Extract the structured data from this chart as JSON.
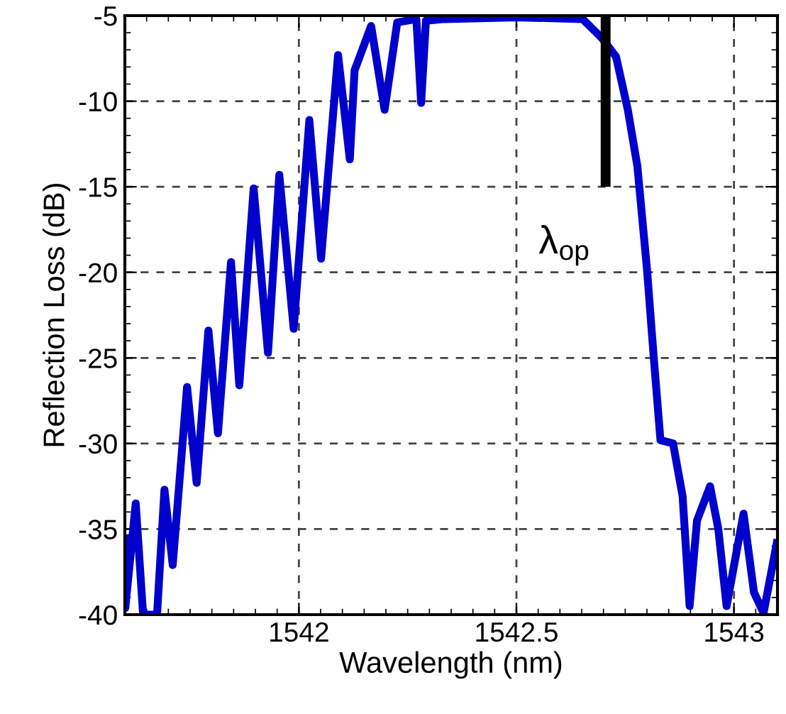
{
  "chart_data": {
    "type": "line",
    "xlabel": "Wavelength (nm)",
    "ylabel": "Reflection Loss (dB)",
    "xlim": [
      1541.6,
      1543.1
    ],
    "ylim": [
      -40,
      -5
    ],
    "xticks": [
      1542,
      1542.5,
      1543
    ],
    "yticks": [
      -40,
      -35,
      -30,
      -25,
      -20,
      -15,
      -10,
      -5
    ],
    "grid": true,
    "line_style": "solid",
    "marker": "none",
    "series": [
      {
        "color": "#0000cc",
        "x": [
          1541.6,
          1541.601,
          1541.625,
          1541.642,
          1541.674,
          1541.691,
          1541.71,
          1541.743,
          1541.765,
          1541.792,
          1541.814,
          1541.844,
          1541.863,
          1541.896,
          1541.929,
          1541.955,
          1541.988,
          1542.024,
          1542.051,
          1542.09,
          1542.117,
          1542.128,
          1542.166,
          1542.197,
          1542.226,
          1542.27,
          1542.281,
          1542.292,
          1542.334,
          1542.5,
          1542.652,
          1542.696,
          1542.729,
          1542.756,
          1542.778,
          1542.8,
          1542.816,
          1542.831,
          1542.86,
          1542.882,
          1542.898,
          1542.915,
          1542.945,
          1542.964,
          1542.983,
          1543.022,
          1543.046,
          1543.068,
          1543.1
        ],
        "values": [
          -35.3,
          -39.6,
          -33.5,
          -40,
          -40,
          -32.7,
          -37.1,
          -26.7,
          -32.3,
          -23.4,
          -29.4,
          -19.4,
          -26.6,
          -15.1,
          -24.7,
          -14.3,
          -23.3,
          -11.1,
          -19.2,
          -7.3,
          -13.4,
          -8.2,
          -5.6,
          -10.5,
          -5.4,
          -5.2,
          -10.1,
          -5.3,
          -5.2,
          -5.1,
          -5.2,
          -6.3,
          -7.4,
          -10.5,
          -13.8,
          -19.8,
          -25.1,
          -29.8,
          -30,
          -33.1,
          -39.5,
          -34.5,
          -32.5,
          -35,
          -39.5,
          -34.1,
          -38.7,
          -39.9,
          -35.6
        ]
      },
      {
        "color": "#000000",
        "x": [
          1542.705,
          1542.705
        ],
        "values": [
          -5,
          -15
        ]
      }
    ],
    "annotations": [
      {
        "text": "λ$_{op}$",
        "x": 1542.705,
        "y": -15
      }
    ]
  }
}
